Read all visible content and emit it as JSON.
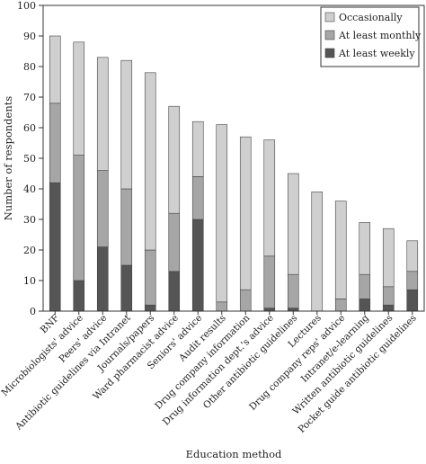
{
  "chart_data": {
    "type": "bar",
    "stacked": true,
    "title": "",
    "xlabel": "Education method",
    "ylabel": "Number of respondents",
    "ylim": [
      0,
      100
    ],
    "yticks": [
      0,
      10,
      20,
      30,
      40,
      50,
      60,
      70,
      80,
      90,
      100
    ],
    "grid": false,
    "legend_position": "top-right",
    "categories": [
      "BNF",
      "Microbiologists' advice",
      "Peers' advice",
      "Antibiotic guidelines via Intranet",
      "Journals/papers",
      "Ward pharmacist advice",
      "Seniors' advice",
      "Audit results",
      "Drug company information",
      "Drug information dept.'s advice",
      "Other antibiotic guidelines",
      "Lectures",
      "Drug company reps' advice",
      "Intranet/e-learning",
      "Written antibiotic guidelines",
      "Pocket guide antibiotic guidelines"
    ],
    "series": [
      {
        "name": "At least weekly",
        "color": "#555555",
        "values": [
          42,
          10,
          21,
          15,
          2,
          13,
          30,
          0,
          0,
          1,
          1,
          0,
          0,
          4,
          2,
          7
        ]
      },
      {
        "name": "At least monthly",
        "color": "#a6a6a6",
        "values": [
          26,
          41,
          25,
          25,
          18,
          19,
          14,
          3,
          7,
          17,
          11,
          0,
          4,
          8,
          6,
          6
        ]
      },
      {
        "name": "Occasionally",
        "color": "#cfcfcf",
        "values": [
          22,
          37,
          37,
          42,
          58,
          35,
          18,
          58,
          50,
          38,
          33,
          39,
          32,
          17,
          19,
          10
        ]
      }
    ],
    "legend_order": [
      "Occasionally",
      "At least monthly",
      "At least weekly"
    ]
  }
}
